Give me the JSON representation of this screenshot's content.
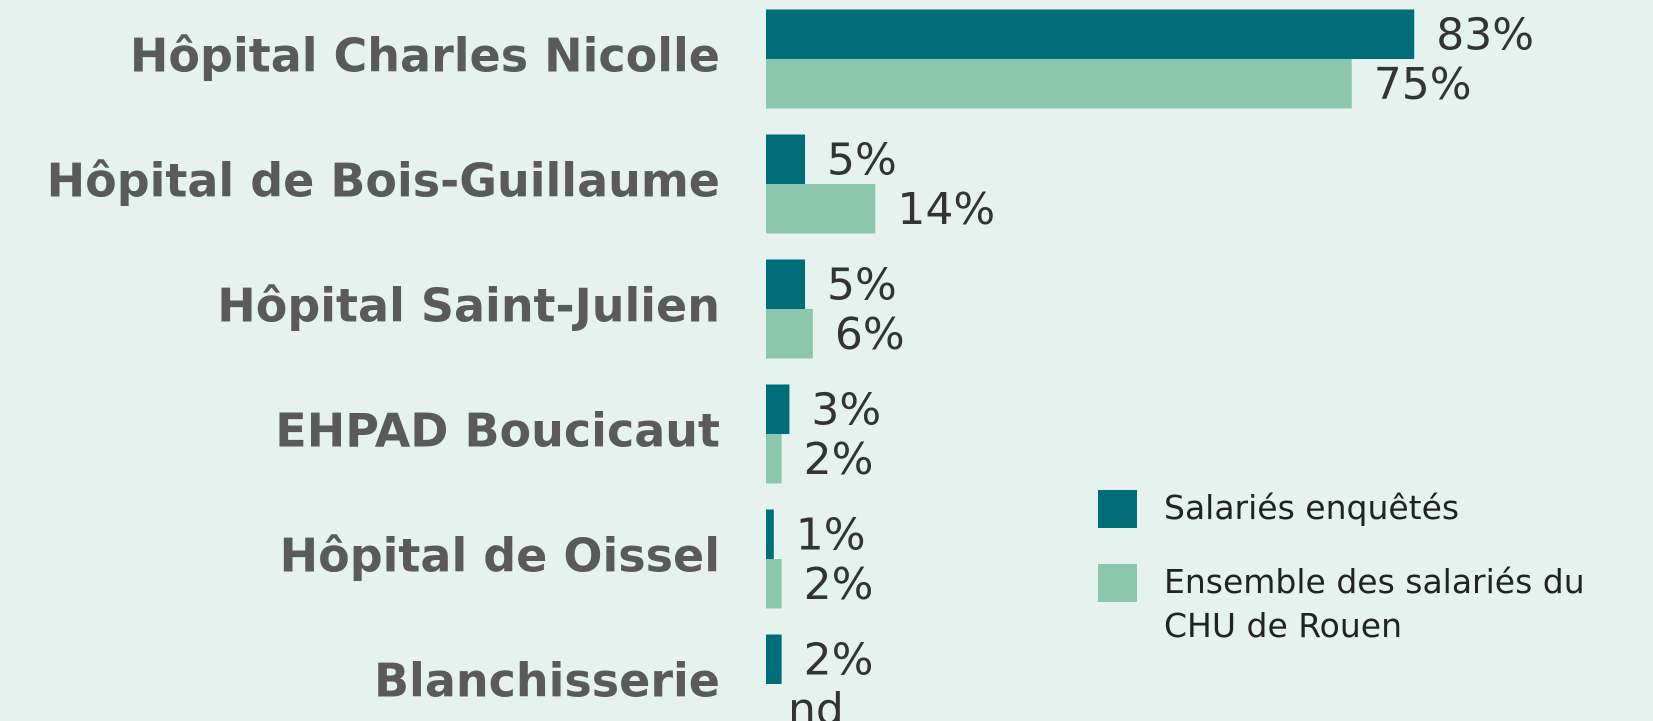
{
  "chart_data": {
    "type": "bar",
    "orientation": "horizontal",
    "categories": [
      "Hôpital Charles Nicolle",
      "Hôpital de Bois-Guillaume",
      "Hôpital Saint-Julien",
      "EHPAD Boucicaut",
      "Hôpital de Oissel",
      "Blanchisserie"
    ],
    "series": [
      {
        "name": "Salariés enquêtés",
        "color": "#006e7a",
        "values": [
          83,
          5,
          5,
          3,
          1,
          2
        ],
        "value_labels": [
          "83%",
          "5%",
          "5%",
          "3%",
          "1%",
          "2%"
        ]
      },
      {
        "name": "Ensemble des salariés du CHU de Rouen",
        "color": "#8cc7ad",
        "values": [
          75,
          14,
          6,
          2,
          2,
          null
        ],
        "value_labels": [
          "75%",
          "14%",
          "6%",
          "2%",
          "2%",
          "nd"
        ]
      }
    ],
    "legend": "right"
  }
}
